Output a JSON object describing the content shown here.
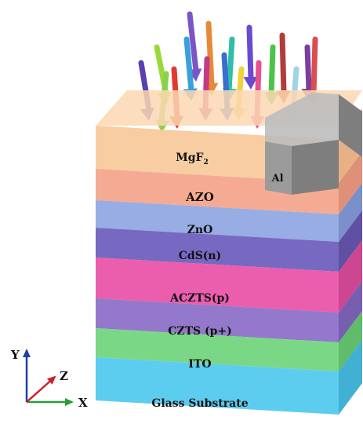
{
  "layers": [
    {
      "label": "MgF",
      "sub": "2",
      "front": "#f7c99a",
      "side": "#e6ad7e",
      "top": "#fbd8b3"
    },
    {
      "label": "AZO",
      "front": "#f4a48a",
      "side": "#dc8a72"
    },
    {
      "label": "ZnO",
      "front": "#8fa6e2",
      "side": "#7489c8"
    },
    {
      "label": "CdS(n)",
      "front": "#6b5cbc",
      "side": "#56479e"
    },
    {
      "label": "ACZTS(p)",
      "front": "#e94fa6",
      "side": "#c93c8b"
    },
    {
      "label": "CZTS (p+)",
      "front": "#8a6cc7",
      "side": "#7055ab"
    },
    {
      "label": "ITO",
      "front": "#6fd47c",
      "side": "#55b863"
    },
    {
      "label": "Glass Substrate",
      "front": "#4fc9ee",
      "side": "#38acd2"
    }
  ],
  "contact": {
    "label": "Al",
    "color": "#9b9b9b",
    "dark": "#7e7e7e",
    "light": "#bdbdbd"
  },
  "axes": {
    "x": "X",
    "y": "Y",
    "z": "Z",
    "x_color": "#2a9d3a",
    "y_color": "#1f3fa8",
    "z_color": "#d0202a"
  },
  "light_rays": {
    "colors": [
      "#5a3fb0",
      "#9ad93a",
      "#e23a2e",
      "#7b55c7",
      "#3aa0d8",
      "#e68a3a",
      "#c23a8a",
      "#2fbfa6",
      "#f0d23a",
      "#6a4ad0",
      "#ea4f8e",
      "#4bc44a",
      "#b23c3c",
      "#9fd3e8",
      "#7a3f9c",
      "#d94f4f",
      "#3a6fd0",
      "#8bd04a"
    ]
  }
}
